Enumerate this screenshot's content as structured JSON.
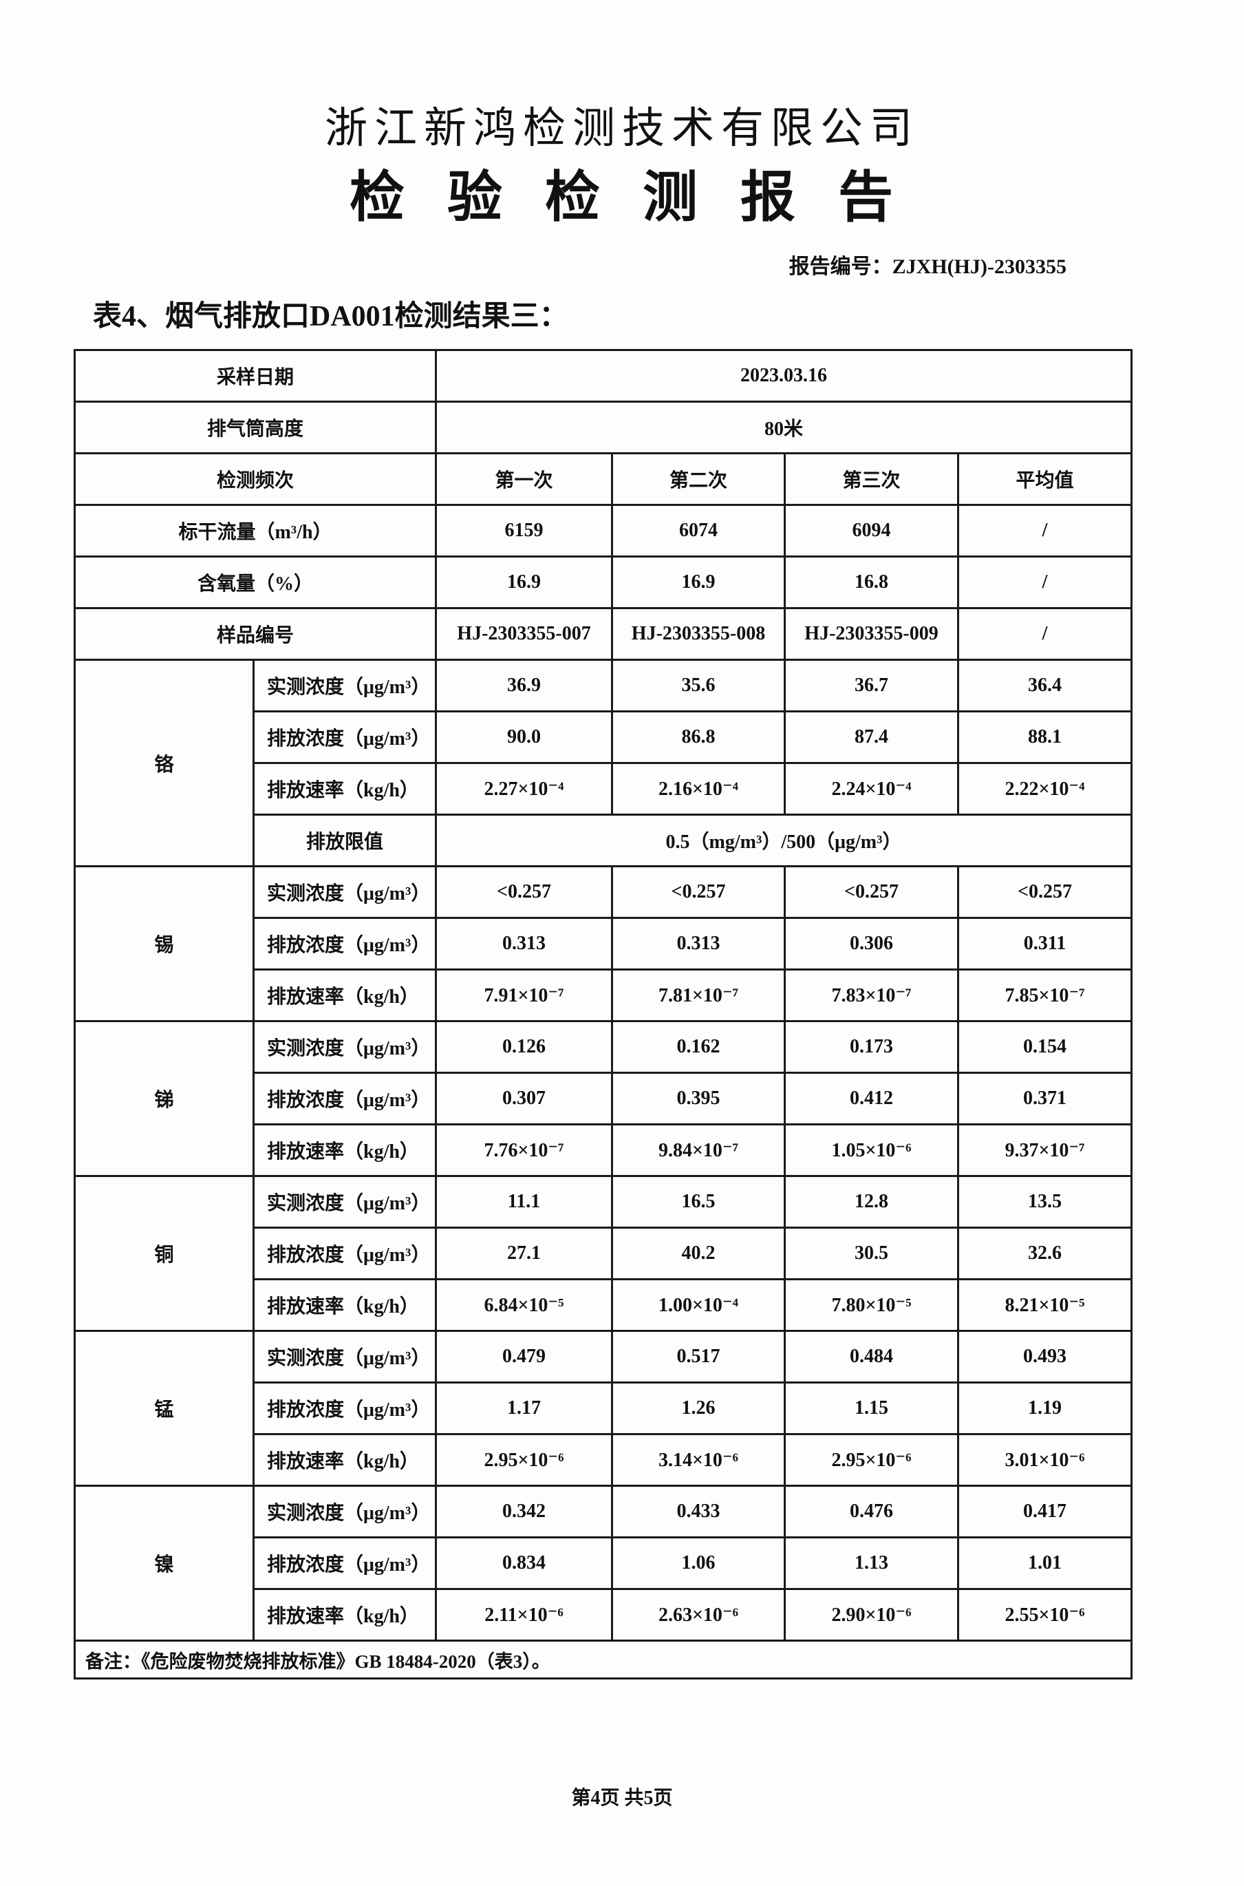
{
  "header": {
    "company": "浙江新鸿检测技术有限公司",
    "title": "检验检测报告",
    "report_no": "报告编号：ZJXH(HJ)-2303355"
  },
  "caption": "表4、烟气排放口DA001检测结果三：",
  "table": {
    "sampling_date_label": "采样日期",
    "sampling_date": "2023.03.16",
    "stack_height_label": "排气筒高度",
    "stack_height": "80米",
    "frequency_label": "检测频次",
    "columns": [
      "第一次",
      "第二次",
      "第三次",
      "平均值"
    ],
    "info_rows": [
      {
        "label": "标干流量（m³/h）",
        "values": [
          "6159",
          "6074",
          "6094",
          "/"
        ]
      },
      {
        "label": "含氧量（%）",
        "values": [
          "16.9",
          "16.9",
          "16.8",
          "/"
        ]
      },
      {
        "label": "样品编号",
        "values": [
          "HJ-2303355-007",
          "HJ-2303355-008",
          "HJ-2303355-009",
          "/"
        ]
      }
    ],
    "metals": [
      {
        "name": "铬",
        "rows": [
          {
            "label": "实测浓度（μg/m³）",
            "values": [
              "36.9",
              "35.6",
              "36.7",
              "36.4"
            ]
          },
          {
            "label": "排放浓度（μg/m³）",
            "values": [
              "90.0",
              "86.8",
              "87.4",
              "88.1"
            ]
          },
          {
            "label": "排放速率（kg/h）",
            "values": [
              "2.27×10⁻⁴",
              "2.16×10⁻⁴",
              "2.24×10⁻⁴",
              "2.22×10⁻⁴"
            ]
          }
        ],
        "limit_label": "排放限值",
        "limit": "0.5（mg/m³）/500（μg/m³）"
      },
      {
        "name": "锡",
        "rows": [
          {
            "label": "实测浓度（μg/m³）",
            "values": [
              "<0.257",
              "<0.257",
              "<0.257",
              "<0.257"
            ]
          },
          {
            "label": "排放浓度（μg/m³）",
            "values": [
              "0.313",
              "0.313",
              "0.306",
              "0.311"
            ]
          },
          {
            "label": "排放速率（kg/h）",
            "values": [
              "7.91×10⁻⁷",
              "7.81×10⁻⁷",
              "7.83×10⁻⁷",
              "7.85×10⁻⁷"
            ]
          }
        ]
      },
      {
        "name": "锑",
        "rows": [
          {
            "label": "实测浓度（μg/m³）",
            "values": [
              "0.126",
              "0.162",
              "0.173",
              "0.154"
            ]
          },
          {
            "label": "排放浓度（μg/m³）",
            "values": [
              "0.307",
              "0.395",
              "0.412",
              "0.371"
            ]
          },
          {
            "label": "排放速率（kg/h）",
            "values": [
              "7.76×10⁻⁷",
              "9.84×10⁻⁷",
              "1.05×10⁻⁶",
              "9.37×10⁻⁷"
            ]
          }
        ]
      },
      {
        "name": "铜",
        "rows": [
          {
            "label": "实测浓度（μg/m³）",
            "values": [
              "11.1",
              "16.5",
              "12.8",
              "13.5"
            ]
          },
          {
            "label": "排放浓度（μg/m³）",
            "values": [
              "27.1",
              "40.2",
              "30.5",
              "32.6"
            ]
          },
          {
            "label": "排放速率（kg/h）",
            "values": [
              "6.84×10⁻⁵",
              "1.00×10⁻⁴",
              "7.80×10⁻⁵",
              "8.21×10⁻⁵"
            ]
          }
        ]
      },
      {
        "name": "锰",
        "rows": [
          {
            "label": "实测浓度（μg/m³）",
            "values": [
              "0.479",
              "0.517",
              "0.484",
              "0.493"
            ]
          },
          {
            "label": "排放浓度（μg/m³）",
            "values": [
              "1.17",
              "1.26",
              "1.15",
              "1.19"
            ]
          },
          {
            "label": "排放速率（kg/h）",
            "values": [
              "2.95×10⁻⁶",
              "3.14×10⁻⁶",
              "2.95×10⁻⁶",
              "3.01×10⁻⁶"
            ]
          }
        ]
      },
      {
        "name": "镍",
        "rows": [
          {
            "label": "实测浓度（μg/m³）",
            "values": [
              "0.342",
              "0.433",
              "0.476",
              "0.417"
            ]
          },
          {
            "label": "排放浓度（μg/m³）",
            "values": [
              "0.834",
              "1.06",
              "1.13",
              "1.01"
            ]
          },
          {
            "label": "排放速率（kg/h）",
            "values": [
              "2.11×10⁻⁶",
              "2.63×10⁻⁶",
              "2.90×10⁻⁶",
              "2.55×10⁻⁶"
            ]
          }
        ]
      }
    ],
    "remark": "备注：《危险废物焚烧排放标准》GB 18484-2020（表3）。"
  },
  "footer": "第4页 共5页"
}
